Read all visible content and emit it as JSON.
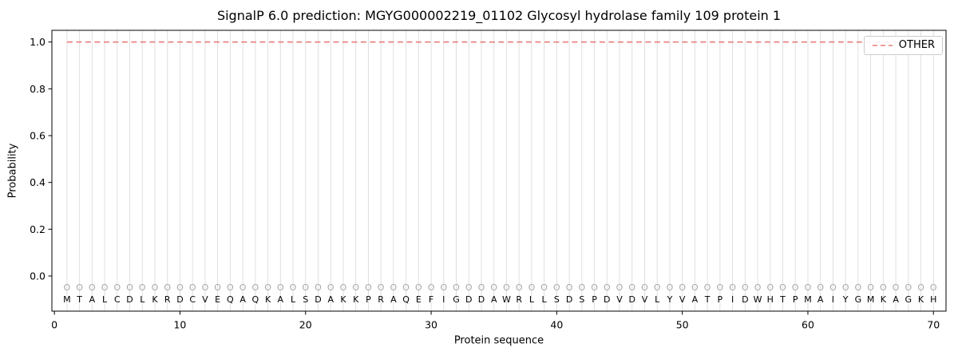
{
  "chart_data": {
    "type": "line",
    "title": "SignalP 6.0 prediction: MGYG000002219_01102 Glycosyl hydrolase family 109 protein 1",
    "xlabel": "Protein sequence",
    "ylabel": "Probability",
    "xlim": [
      -0.2,
      71
    ],
    "ylim": [
      -0.15,
      1.05
    ],
    "x_ticks": [
      0,
      10,
      20,
      30,
      40,
      50,
      60,
      70
    ],
    "y_tick_labels": [
      "0.0",
      "0.2",
      "0.4",
      "0.6",
      "0.8",
      "1.0"
    ],
    "grid": {
      "vertical_per_residue": true,
      "horizontal": false
    },
    "legend": {
      "position": "upper right",
      "entries": [
        "OTHER"
      ]
    },
    "sequence": "MTALCDLKRDCVEQAQKALSDAKKPRAQEFIGDDAWRLLSDSPDVDVLYVATPIDWHTPMAIYGMKAGKH",
    "position_classes": "OOOOOOOOOOOOOOOOOOOOOOOOOOOOOOOOOOOOOOOOOOOOOOOOOOOOOOOOOOOOOOOOOOOOOO",
    "marker_row_value": -0.05,
    "sequence_row_value": -0.1,
    "series": [
      {
        "name": "OTHER",
        "color": "#e97c7c",
        "linestyle": "dashed",
        "x_start": 1,
        "values": [
          1.0,
          1.0,
          1.0,
          1.0,
          1.0,
          1.0,
          1.0,
          1.0,
          1.0,
          1.0,
          1.0,
          1.0,
          1.0,
          1.0,
          1.0,
          1.0,
          1.0,
          1.0,
          1.0,
          1.0,
          1.0,
          1.0,
          1.0,
          1.0,
          1.0,
          1.0,
          1.0,
          1.0,
          1.0,
          1.0,
          1.0,
          1.0,
          1.0,
          1.0,
          1.0,
          1.0,
          1.0,
          1.0,
          1.0,
          1.0,
          1.0,
          1.0,
          1.0,
          1.0,
          1.0,
          1.0,
          1.0,
          1.0,
          1.0,
          1.0,
          1.0,
          1.0,
          1.0,
          1.0,
          1.0,
          1.0,
          1.0,
          1.0,
          1.0,
          1.0,
          1.0,
          1.0,
          1.0,
          1.0,
          1.0,
          1.0,
          1.0,
          1.0,
          1.0,
          1.0
        ]
      }
    ]
  },
  "colors": {
    "background": "#ffffff",
    "other_line": "#e97c7c",
    "grid_line": "#dcdcdc",
    "spine": "#000000",
    "tick_label": "#000000",
    "marker_gray": "#a8a8a8",
    "sequence_letter": "#000000"
  }
}
